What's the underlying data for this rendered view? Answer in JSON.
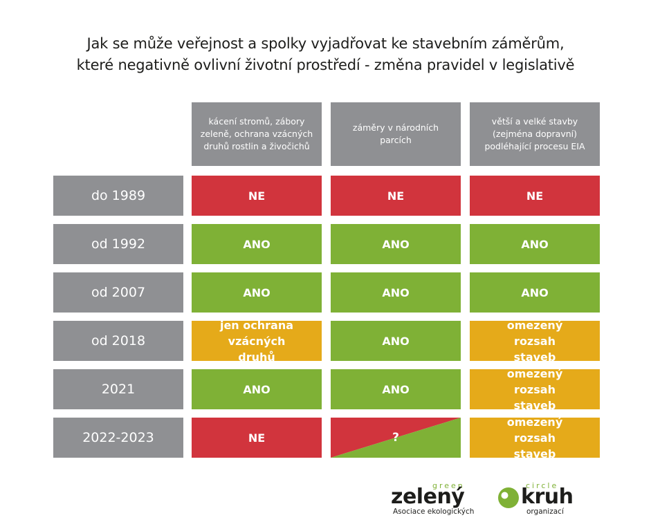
{
  "title": {
    "line1": "Jak se může veřejnost a spolky vyjadřovat ke stavebním záměrům,",
    "line2": "které negativně ovlivní životní prostředí - změna pravidel v legislativě"
  },
  "columns": [
    "kácení stromů, zábory zeleně, ochrana vzácných druhů rostlin a živočichů",
    "záměry v národních parcích",
    "větší a velké stavby (zejména dopravní) podléhající procesu EIA"
  ],
  "rows": [
    {
      "label": "do 1989",
      "cells": [
        {
          "text": "NE",
          "color": "#d1343d"
        },
        {
          "text": "NE",
          "color": "#d1343d"
        },
        {
          "text": "NE",
          "color": "#d1343d"
        }
      ]
    },
    {
      "label": "od 1992",
      "cells": [
        {
          "text": "ANO",
          "color": "#7fb136"
        },
        {
          "text": "ANO",
          "color": "#7fb136"
        },
        {
          "text": "ANO",
          "color": "#7fb136"
        }
      ]
    },
    {
      "label": "od 2007",
      "cells": [
        {
          "text": "ANO",
          "color": "#7fb136"
        },
        {
          "text": "ANO",
          "color": "#7fb136"
        },
        {
          "text": "ANO",
          "color": "#7fb136"
        }
      ]
    },
    {
      "label": "od 2018",
      "cells": [
        {
          "text": "jen ochrana vzácných druhů",
          "color": "#e5aa1a"
        },
        {
          "text": "ANO",
          "color": "#7fb136"
        },
        {
          "text": "omezený rozsah staveb",
          "color": "#e5aa1a"
        }
      ]
    },
    {
      "label": "2021",
      "cells": [
        {
          "text": "ANO",
          "color": "#7fb136"
        },
        {
          "text": "ANO",
          "color": "#7fb136"
        },
        {
          "text": "omezený rozsah staveb",
          "color": "#e5aa1a"
        }
      ]
    },
    {
      "label": "2022-2023",
      "cells": [
        {
          "text": "NE",
          "color": "#d1343d"
        },
        {
          "text": "?",
          "color": "split-red-green"
        },
        {
          "text": "omezený rozsah staveb",
          "color": "#e5aa1a"
        }
      ]
    }
  ],
  "logo": {
    "green": "green",
    "circle": "circle",
    "word1": "zelený",
    "word2": "kruh",
    "sub1": "Asociace ekologických",
    "sub2": "organizací"
  },
  "colors": {
    "header_gray": "#8f9093",
    "red": "#d1343d",
    "green": "#7fb136",
    "amber": "#e5aa1a"
  }
}
